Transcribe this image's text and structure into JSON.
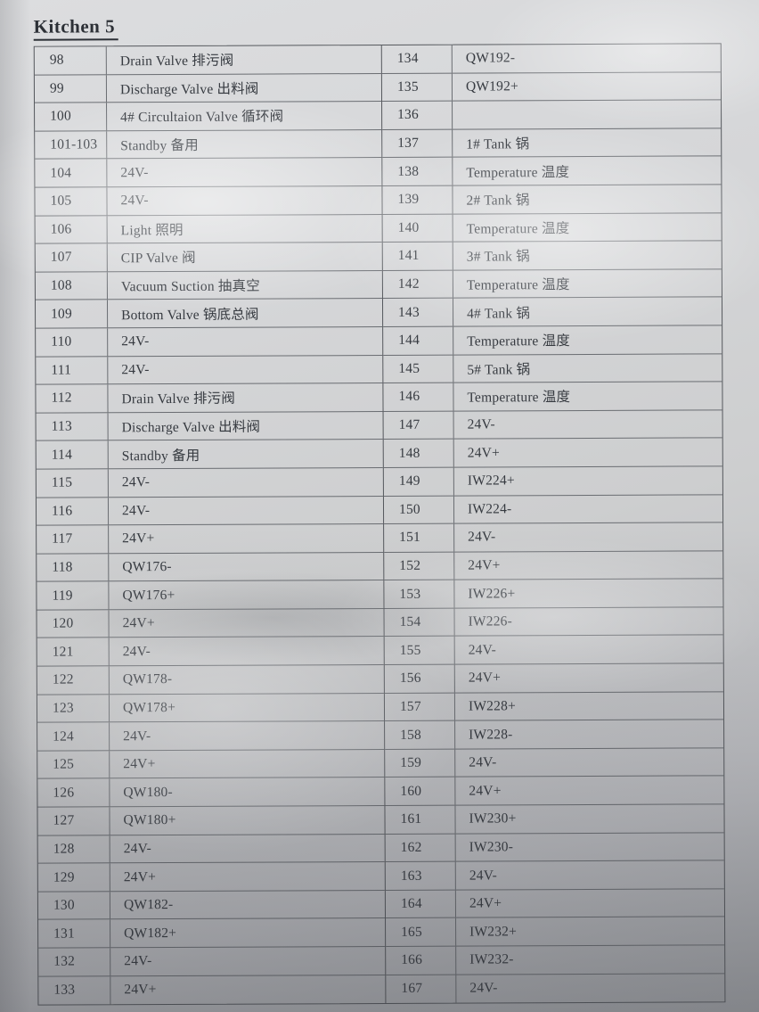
{
  "page_title": "Kitchen 5",
  "colors": {
    "paper": "#d2d3d5",
    "ink": "#363a40",
    "grid_line": "#6a6d72",
    "outer_border": "#55585d"
  },
  "table": {
    "left_rows": [
      {
        "no": "98",
        "label": "Drain Valve 排污阀"
      },
      {
        "no": "99",
        "label": "Discharge Valve 出料阀"
      },
      {
        "no": "100",
        "label": "4# Circultaion Valve 循环阀"
      },
      {
        "no": "101-103",
        "label": "Standby 备用"
      },
      {
        "no": "104",
        "label": "24V-"
      },
      {
        "no": "105",
        "label": "24V-"
      },
      {
        "no": "106",
        "label": "Light 照明"
      },
      {
        "no": "107",
        "label": "CIP Valve 阀"
      },
      {
        "no": "108",
        "label": "Vacuum Suction 抽真空"
      },
      {
        "no": "109",
        "label": "Bottom Valve 锅底总阀"
      },
      {
        "no": "110",
        "label": "24V-"
      },
      {
        "no": "111",
        "label": "24V-"
      },
      {
        "no": "112",
        "label": "Drain Valve 排污阀"
      },
      {
        "no": "113",
        "label": "Discharge Valve 出料阀"
      },
      {
        "no": "114",
        "label": "Standby 备用"
      },
      {
        "no": "115",
        "label": "24V-"
      },
      {
        "no": "116",
        "label": "24V-"
      },
      {
        "no": "117",
        "label": "24V+"
      },
      {
        "no": "118",
        "label": "QW176-"
      },
      {
        "no": "119",
        "label": "QW176+"
      },
      {
        "no": "120",
        "label": "24V+"
      },
      {
        "no": "121",
        "label": "24V-"
      },
      {
        "no": "122",
        "label": "QW178-"
      },
      {
        "no": "123",
        "label": "QW178+"
      },
      {
        "no": "124",
        "label": "24V-"
      },
      {
        "no": "125",
        "label": "24V+"
      },
      {
        "no": "126",
        "label": "QW180-"
      },
      {
        "no": "127",
        "label": "QW180+"
      },
      {
        "no": "128",
        "label": "24V-"
      },
      {
        "no": "129",
        "label": "24V+"
      },
      {
        "no": "130",
        "label": "QW182-"
      },
      {
        "no": "131",
        "label": "QW182+"
      },
      {
        "no": "132",
        "label": "24V-"
      },
      {
        "no": "133",
        "label": "24V+"
      }
    ],
    "right_rows": [
      {
        "no": "134",
        "label": "QW192-"
      },
      {
        "no": "135",
        "label": "QW192+"
      },
      {
        "no": "136",
        "label": ""
      },
      {
        "no": "137",
        "label": "1# Tank 锅"
      },
      {
        "no": "138",
        "label": "Temperature 温度"
      },
      {
        "no": "139",
        "label": "2# Tank 锅"
      },
      {
        "no": "140",
        "label": "Temperature 温度"
      },
      {
        "no": "141",
        "label": "3# Tank 锅"
      },
      {
        "no": "142",
        "label": "Temperature 温度"
      },
      {
        "no": "143",
        "label": "4# Tank 锅"
      },
      {
        "no": "144",
        "label": "Temperature 温度"
      },
      {
        "no": "145",
        "label": "5# Tank 锅"
      },
      {
        "no": "146",
        "label": "Temperature 温度"
      },
      {
        "no": "147",
        "label": "24V-"
      },
      {
        "no": "148",
        "label": "24V+"
      },
      {
        "no": "149",
        "label": "IW224+"
      },
      {
        "no": "150",
        "label": "IW224-"
      },
      {
        "no": "151",
        "label": "24V-"
      },
      {
        "no": "152",
        "label": "24V+"
      },
      {
        "no": "153",
        "label": "IW226+"
      },
      {
        "no": "154",
        "label": "IW226-"
      },
      {
        "no": "155",
        "label": "24V-"
      },
      {
        "no": "156",
        "label": "24V+"
      },
      {
        "no": "157",
        "label": "IW228+"
      },
      {
        "no": "158",
        "label": "IW228-"
      },
      {
        "no": "159",
        "label": "24V-"
      },
      {
        "no": "160",
        "label": "24V+"
      },
      {
        "no": "161",
        "label": "IW230+"
      },
      {
        "no": "162",
        "label": "IW230-"
      },
      {
        "no": "163",
        "label": "24V-"
      },
      {
        "no": "164",
        "label": "24V+"
      },
      {
        "no": "165",
        "label": "IW232+"
      },
      {
        "no": "166",
        "label": "IW232-"
      },
      {
        "no": "167",
        "label": "24V-"
      }
    ]
  }
}
